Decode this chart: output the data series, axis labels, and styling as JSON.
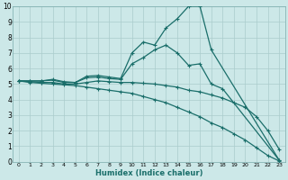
{
  "xlabel": "Humidex (Indice chaleur)",
  "background_color": "#cce8e8",
  "grid_color": "#aacccc",
  "line_color": "#1a6e6a",
  "xlim": [
    -0.5,
    23.5
  ],
  "ylim": [
    0,
    10
  ],
  "xtick_vals": [
    0,
    1,
    2,
    3,
    4,
    5,
    6,
    7,
    8,
    9,
    10,
    11,
    12,
    13,
    14,
    15,
    16,
    17,
    18,
    19,
    20,
    21,
    22,
    23
  ],
  "xtick_labels": [
    "0",
    "1",
    "2",
    "3",
    "4",
    "5",
    "6",
    "7",
    "8",
    "9",
    "10",
    "11",
    "12",
    "13",
    "14",
    "15",
    "16",
    "17",
    "18",
    "19",
    "20",
    "21",
    "22",
    "23"
  ],
  "ytick_vals": [
    0,
    1,
    2,
    3,
    4,
    5,
    6,
    7,
    8,
    9,
    10
  ],
  "ytick_labels": [
    "0",
    "1",
    "2",
    "3",
    "4",
    "5",
    "6",
    "7",
    "8",
    "9",
    "10"
  ],
  "lines": [
    {
      "x": [
        0,
        1,
        2,
        3,
        4,
        5,
        6,
        7,
        8,
        9,
        10,
        11,
        12,
        13,
        14,
        15,
        16,
        17,
        23
      ],
      "y": [
        5.2,
        5.2,
        5.2,
        5.3,
        5.15,
        5.1,
        5.5,
        5.55,
        5.45,
        5.35,
        7.0,
        7.7,
        7.5,
        8.6,
        9.2,
        10.0,
        10.0,
        7.2,
        0.1
      ]
    },
    {
      "x": [
        0,
        1,
        2,
        3,
        4,
        5,
        6,
        7,
        8,
        9,
        10,
        11,
        12,
        13,
        14,
        15,
        16,
        17,
        18,
        23
      ],
      "y": [
        5.2,
        5.2,
        5.2,
        5.25,
        5.1,
        5.1,
        5.4,
        5.45,
        5.35,
        5.3,
        6.3,
        6.7,
        7.2,
        7.5,
        7.0,
        6.2,
        6.3,
        5.0,
        4.7,
        0.1
      ]
    },
    {
      "x": [
        0,
        1,
        2,
        3,
        4,
        5,
        6,
        7,
        8,
        9,
        10,
        11,
        12,
        13,
        14,
        15,
        16,
        17,
        18,
        19,
        20,
        21,
        22,
        23
      ],
      "y": [
        5.2,
        5.15,
        5.1,
        5.1,
        5.0,
        5.0,
        5.1,
        5.2,
        5.15,
        5.1,
        5.1,
        5.05,
        5.0,
        4.9,
        4.8,
        4.6,
        4.5,
        4.3,
        4.1,
        3.8,
        3.5,
        2.9,
        2.0,
        0.8
      ]
    },
    {
      "x": [
        0,
        1,
        2,
        3,
        4,
        5,
        6,
        7,
        8,
        9,
        10,
        11,
        12,
        13,
        14,
        15,
        16,
        17,
        18,
        19,
        20,
        21,
        22,
        23
      ],
      "y": [
        5.2,
        5.1,
        5.05,
        5.0,
        4.95,
        4.9,
        4.8,
        4.7,
        4.6,
        4.5,
        4.4,
        4.2,
        4.0,
        3.8,
        3.5,
        3.2,
        2.9,
        2.5,
        2.2,
        1.8,
        1.4,
        0.9,
        0.4,
        0.05
      ]
    }
  ]
}
